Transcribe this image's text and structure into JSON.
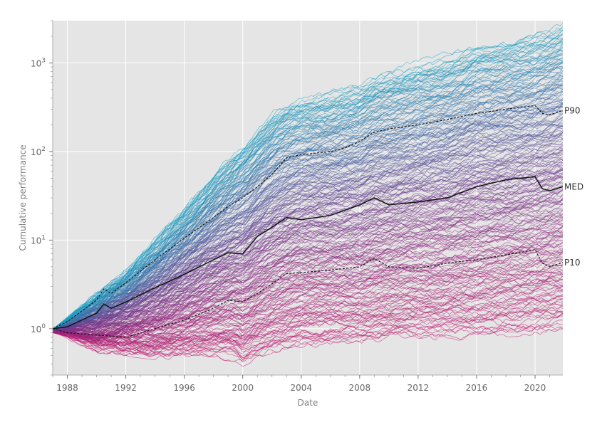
{
  "chart_data": {
    "type": "line",
    "title": "",
    "xlabel": "Date",
    "ylabel": "Cumulative performance",
    "y_scale": "log",
    "grid": true,
    "legend": "none",
    "xlim": [
      1987.0,
      2021.9
    ],
    "ylim": [
      0.3,
      3000
    ],
    "x_ticks": [
      1988,
      1992,
      1996,
      2000,
      2004,
      2008,
      2012,
      2016,
      2020
    ],
    "x_tick_labels": [
      "1988",
      "1992",
      "1996",
      "2000",
      "2004",
      "2008",
      "2012",
      "2016",
      "2020"
    ],
    "y_ticks": [
      1,
      10,
      100,
      1000
    ],
    "y_tick_labels": [
      {
        "base": "10",
        "exp": "0"
      },
      {
        "base": "10",
        "exp": "1"
      },
      {
        "base": "10",
        "exp": "2"
      },
      {
        "base": "10",
        "exp": "3"
      }
    ],
    "colors": {
      "background": "#e5e5e5",
      "grid": "#ffffff",
      "high_ensemble": "#1aa0c2",
      "mid_ensemble": "#6b3a8c",
      "low_ensemble": "#c0146d",
      "reference_lines": "#111111"
    },
    "ensemble": {
      "description": "hundreds of simulated paths, colored from magenta (low) through purple to cyan (high)",
      "upper_envelope": {
        "x": [
          1987.0,
          1988,
          1990,
          1992,
          1994,
          1996,
          1998,
          2000,
          2002,
          2003,
          2004,
          2006,
          2008,
          2009,
          2010,
          2012,
          2014,
          2016,
          2018,
          2020,
          2021.9
        ],
        "y": [
          1.0,
          1.3,
          2.4,
          4.2,
          9.5,
          22,
          52,
          110,
          250,
          330,
          380,
          430,
          520,
          650,
          720,
          900,
          1050,
          1450,
          1650,
          1900,
          2500
        ]
      },
      "lower_envelope": {
        "x": [
          1987.0,
          1988,
          1990,
          1992,
          1994,
          1996,
          1998,
          1999.5,
          2000,
          2001,
          2003,
          2004,
          2006,
          2008,
          2009,
          2012,
          2016,
          2020,
          2021.9
        ],
        "y": [
          0.9,
          0.82,
          0.6,
          0.55,
          0.5,
          0.5,
          0.5,
          0.48,
          0.42,
          0.5,
          0.6,
          0.66,
          0.7,
          0.7,
          0.75,
          0.8,
          0.85,
          0.95,
          1.0
        ]
      }
    },
    "series": [
      {
        "name": "P90",
        "style": "dashed",
        "x": [
          1987.0,
          1988,
          1990,
          1990.5,
          1991,
          1992,
          1994,
          1996,
          1998,
          1999,
          2000,
          2001,
          2002,
          2003,
          2004,
          2006,
          2007,
          2008,
          2009,
          2010,
          2012,
          2014,
          2016,
          2018,
          2019,
          2020,
          2020.5,
          2021,
          2021.9
        ],
        "y": [
          1.0,
          1.2,
          2.1,
          2.8,
          2.5,
          3.3,
          6.0,
          10.5,
          18,
          24,
          30,
          40,
          55,
          85,
          92,
          100,
          110,
          130,
          165,
          180,
          200,
          230,
          270,
          300,
          315,
          330,
          270,
          260,
          290
        ]
      },
      {
        "name": "MED",
        "style": "solid",
        "x": [
          1987.0,
          1988,
          1990,
          1990.5,
          1991,
          1992,
          1994,
          1996,
          1998,
          1999,
          2000,
          2001,
          2002,
          2003,
          2004,
          2006,
          2008,
          2009,
          2010,
          2012,
          2014,
          2016,
          2018,
          2020,
          2020.5,
          2021,
          2021.9
        ],
        "y": [
          1.0,
          1.05,
          1.5,
          1.9,
          1.7,
          2.0,
          2.9,
          4.1,
          6.0,
          7.2,
          7.0,
          11,
          14,
          18,
          17,
          19,
          25,
          30,
          25,
          27,
          30,
          40,
          48,
          52,
          38,
          36,
          40
        ]
      },
      {
        "name": "P10",
        "style": "dashed",
        "x": [
          1987.0,
          1988,
          1990,
          1992,
          1994,
          1996,
          1998,
          1999,
          2000,
          2001,
          2002,
          2003,
          2004,
          2006,
          2008,
          2009,
          2010,
          2012,
          2014,
          2016,
          2018,
          2020,
          2020.5,
          2021,
          2021.9
        ],
        "y": [
          1.0,
          0.9,
          0.85,
          0.8,
          1.0,
          1.25,
          1.7,
          2.1,
          2.0,
          2.5,
          3.2,
          4.2,
          4.3,
          4.6,
          5.0,
          6.2,
          5.0,
          4.8,
          5.5,
          6.0,
          6.8,
          7.8,
          5.5,
          5.0,
          5.6
        ]
      }
    ]
  }
}
